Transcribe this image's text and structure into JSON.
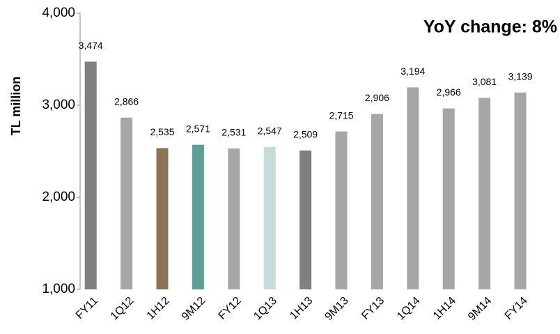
{
  "chart_data": {
    "type": "bar",
    "annotation": "YoY change: 8%",
    "ylabel": "TL million",
    "categories": [
      "FY11",
      "1Q12",
      "1H12",
      "9M12",
      "FY12",
      "1Q13",
      "1H13",
      "9M13",
      "FY13",
      "1Q14",
      "1H14",
      "9M14",
      "FY14"
    ],
    "values": [
      3474,
      2866,
      2535,
      2571,
      2531,
      2547,
      2509,
      2715,
      2906,
      3194,
      2966,
      3081,
      3139
    ],
    "value_labels": [
      "3,474",
      "2,866",
      "2,535",
      "2,571",
      "2,531",
      "2,547",
      "2,509",
      "2,715",
      "2,906",
      "3,194",
      "2,966",
      "3,081",
      "3,139"
    ],
    "colors": [
      "#808080",
      "#a6a6a6",
      "#8b7355",
      "#5f9e96",
      "#a6a6a6",
      "#c5dcd8",
      "#808080",
      "#a6a6a6",
      "#a6a6a6",
      "#a6a6a6",
      "#a6a6a6",
      "#a6a6a6",
      "#a6a6a6"
    ],
    "ylim": [
      1000,
      4000
    ],
    "yticks": [
      {
        "value": 1000,
        "label": "1,000"
      },
      {
        "value": 2000,
        "label": "2,000"
      },
      {
        "value": 3000,
        "label": "3,000"
      },
      {
        "value": 4000,
        "label": "4,000"
      }
    ],
    "grid": false
  }
}
